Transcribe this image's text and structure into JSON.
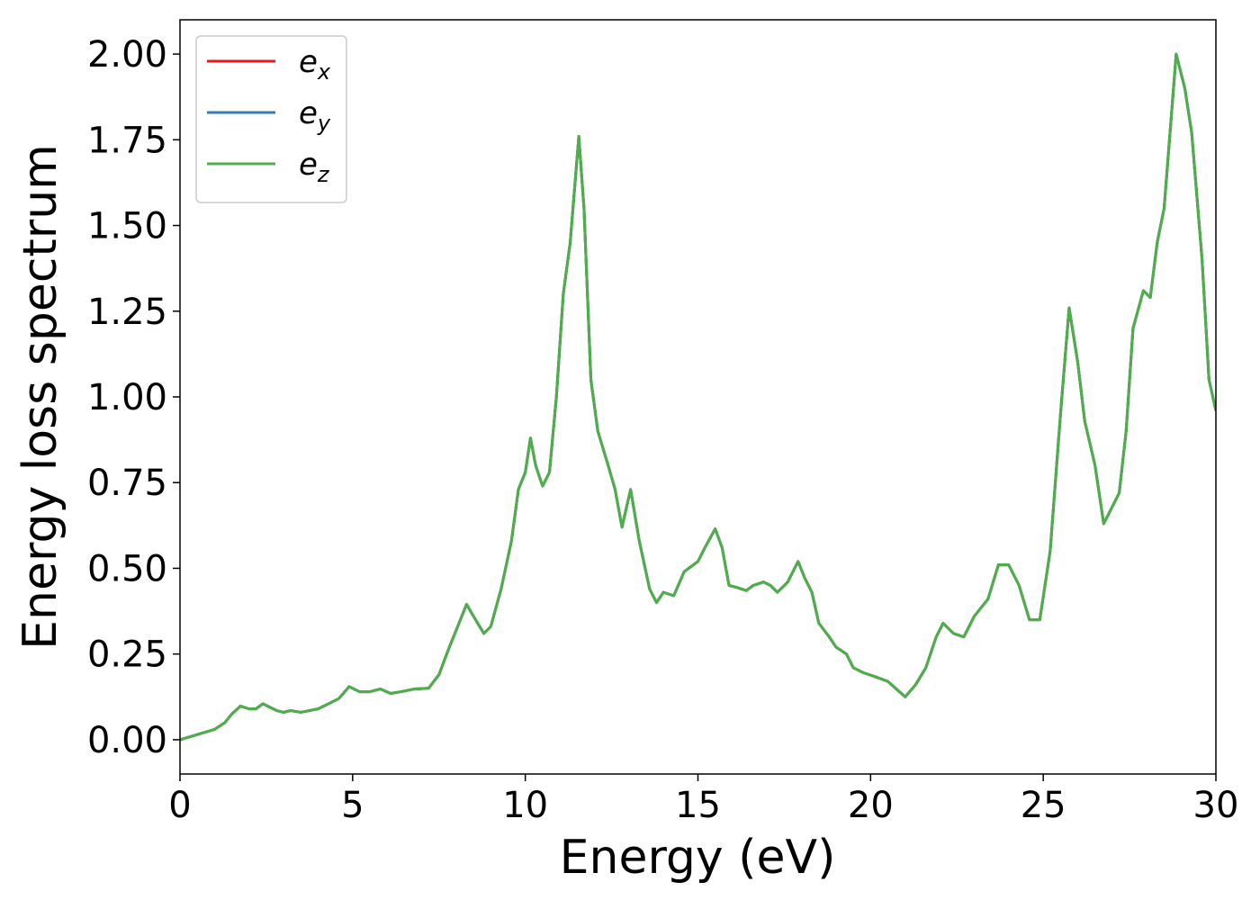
{
  "chart_data": {
    "type": "line",
    "xlabel": "Energy (eV)",
    "ylabel": "Energy loss spectrum",
    "xlim": [
      0,
      30
    ],
    "xticks": [
      0,
      5,
      10,
      15,
      20,
      25,
      30
    ],
    "ylim": [
      -0.1,
      2.1
    ],
    "yticks": [
      {
        "value": 0,
        "label": "0.00"
      },
      {
        "value": 0.25,
        "label": "0.25"
      },
      {
        "value": 0.5,
        "label": "0.50"
      },
      {
        "value": 0.75,
        "label": "0.75"
      },
      {
        "value": 1,
        "label": "1.00"
      },
      {
        "value": 1.25,
        "label": "1.25"
      },
      {
        "value": 1.5,
        "label": "1.50"
      },
      {
        "value": 1.75,
        "label": "1.75"
      },
      {
        "value": 2,
        "label": "2.00"
      }
    ],
    "legend": "upper left",
    "x": [
      0,
      0.5,
      1.0,
      1.3,
      1.5,
      1.75,
      2.0,
      2.2,
      2.4,
      2.6,
      2.8,
      3.0,
      3.2,
      3.5,
      4.0,
      4.3,
      4.6,
      4.9,
      5.2,
      5.5,
      5.8,
      6.1,
      6.4,
      6.8,
      7.2,
      7.5,
      7.8,
      8.0,
      8.3,
      8.5,
      8.8,
      9.0,
      9.3,
      9.6,
      9.8,
      10.0,
      10.15,
      10.3,
      10.5,
      10.7,
      10.9,
      11.1,
      11.3,
      11.55,
      11.7,
      11.9,
      12.1,
      12.4,
      12.6,
      12.8,
      13.05,
      13.3,
      13.6,
      13.8,
      14.0,
      14.3,
      14.6,
      15.0,
      15.2,
      15.5,
      15.7,
      15.9,
      16.1,
      16.4,
      16.6,
      16.9,
      17.1,
      17.3,
      17.6,
      17.9,
      18.1,
      18.3,
      18.5,
      18.8,
      19.0,
      19.3,
      19.5,
      19.8,
      20.1,
      20.5,
      21.0,
      21.3,
      21.6,
      21.9,
      22.1,
      22.4,
      22.7,
      23.0,
      23.4,
      23.7,
      24.0,
      24.3,
      24.6,
      24.9,
      25.2,
      25.5,
      25.75,
      26.0,
      26.2,
      26.5,
      26.75,
      27.0,
      27.2,
      27.4,
      27.6,
      27.9,
      28.1,
      28.3,
      28.5,
      28.85,
      29.1,
      29.3,
      29.6,
      29.8,
      30.0
    ],
    "series": [
      {
        "name": "ex",
        "color": "#e41a1c",
        "values": [
          0,
          0.015,
          0.03,
          0.05,
          0.075,
          0.098,
          0.09,
          0.09,
          0.105,
          0.095,
          0.085,
          0.08,
          0.085,
          0.08,
          0.09,
          0.105,
          0.12,
          0.155,
          0.14,
          0.14,
          0.148,
          0.135,
          0.14,
          0.148,
          0.15,
          0.19,
          0.27,
          0.32,
          0.395,
          0.36,
          0.31,
          0.33,
          0.44,
          0.58,
          0.73,
          0.78,
          0.88,
          0.8,
          0.74,
          0.78,
          1.0,
          1.3,
          1.45,
          1.76,
          1.55,
          1.05,
          0.9,
          0.8,
          0.73,
          0.62,
          0.73,
          0.58,
          0.44,
          0.4,
          0.43,
          0.42,
          0.49,
          0.52,
          0.56,
          0.615,
          0.56,
          0.45,
          0.445,
          0.435,
          0.45,
          0.46,
          0.45,
          0.43,
          0.46,
          0.52,
          0.47,
          0.43,
          0.34,
          0.3,
          0.27,
          0.25,
          0.21,
          0.195,
          0.185,
          0.17,
          0.125,
          0.16,
          0.21,
          0.3,
          0.34,
          0.31,
          0.3,
          0.36,
          0.41,
          0.51,
          0.51,
          0.45,
          0.35,
          0.35,
          0.55,
          0.95,
          1.26,
          1.1,
          0.93,
          0.8,
          0.63,
          0.68,
          0.72,
          0.9,
          1.2,
          1.31,
          1.29,
          1.45,
          1.55,
          2.0,
          1.9,
          1.77,
          1.4,
          1.05,
          0.96
        ]
      },
      {
        "name": "ey",
        "color": "#377eb8",
        "values": [
          0,
          0.015,
          0.03,
          0.05,
          0.075,
          0.098,
          0.09,
          0.09,
          0.105,
          0.095,
          0.085,
          0.08,
          0.085,
          0.08,
          0.09,
          0.105,
          0.12,
          0.155,
          0.14,
          0.14,
          0.148,
          0.135,
          0.14,
          0.148,
          0.15,
          0.19,
          0.27,
          0.32,
          0.395,
          0.36,
          0.31,
          0.33,
          0.44,
          0.58,
          0.73,
          0.78,
          0.88,
          0.8,
          0.74,
          0.78,
          1.0,
          1.3,
          1.45,
          1.76,
          1.55,
          1.05,
          0.9,
          0.8,
          0.73,
          0.62,
          0.73,
          0.58,
          0.44,
          0.4,
          0.43,
          0.42,
          0.49,
          0.52,
          0.56,
          0.615,
          0.56,
          0.45,
          0.445,
          0.435,
          0.45,
          0.46,
          0.45,
          0.43,
          0.46,
          0.52,
          0.47,
          0.43,
          0.34,
          0.3,
          0.27,
          0.25,
          0.21,
          0.195,
          0.185,
          0.17,
          0.125,
          0.16,
          0.21,
          0.3,
          0.34,
          0.31,
          0.3,
          0.36,
          0.41,
          0.51,
          0.51,
          0.45,
          0.35,
          0.35,
          0.55,
          0.95,
          1.26,
          1.1,
          0.93,
          0.8,
          0.63,
          0.68,
          0.72,
          0.9,
          1.2,
          1.31,
          1.29,
          1.45,
          1.55,
          2.0,
          1.9,
          1.77,
          1.4,
          1.05,
          0.96
        ]
      },
      {
        "name": "ez",
        "color": "#4daf4a",
        "values": [
          0,
          0.015,
          0.03,
          0.05,
          0.075,
          0.098,
          0.09,
          0.09,
          0.105,
          0.095,
          0.085,
          0.08,
          0.085,
          0.08,
          0.09,
          0.105,
          0.12,
          0.155,
          0.14,
          0.14,
          0.148,
          0.135,
          0.14,
          0.148,
          0.15,
          0.19,
          0.27,
          0.32,
          0.395,
          0.36,
          0.31,
          0.33,
          0.44,
          0.58,
          0.73,
          0.78,
          0.88,
          0.8,
          0.74,
          0.78,
          1.0,
          1.3,
          1.45,
          1.76,
          1.55,
          1.05,
          0.9,
          0.8,
          0.73,
          0.62,
          0.73,
          0.58,
          0.44,
          0.4,
          0.43,
          0.42,
          0.49,
          0.52,
          0.56,
          0.615,
          0.56,
          0.45,
          0.445,
          0.435,
          0.45,
          0.46,
          0.45,
          0.43,
          0.46,
          0.52,
          0.47,
          0.43,
          0.34,
          0.3,
          0.27,
          0.25,
          0.21,
          0.195,
          0.185,
          0.17,
          0.125,
          0.16,
          0.21,
          0.3,
          0.34,
          0.31,
          0.3,
          0.36,
          0.41,
          0.51,
          0.51,
          0.45,
          0.35,
          0.35,
          0.55,
          0.95,
          1.26,
          1.1,
          0.93,
          0.8,
          0.63,
          0.68,
          0.72,
          0.9,
          1.2,
          1.31,
          1.29,
          1.45,
          1.55,
          2.0,
          1.9,
          1.77,
          1.4,
          1.05,
          0.96
        ]
      }
    ]
  }
}
